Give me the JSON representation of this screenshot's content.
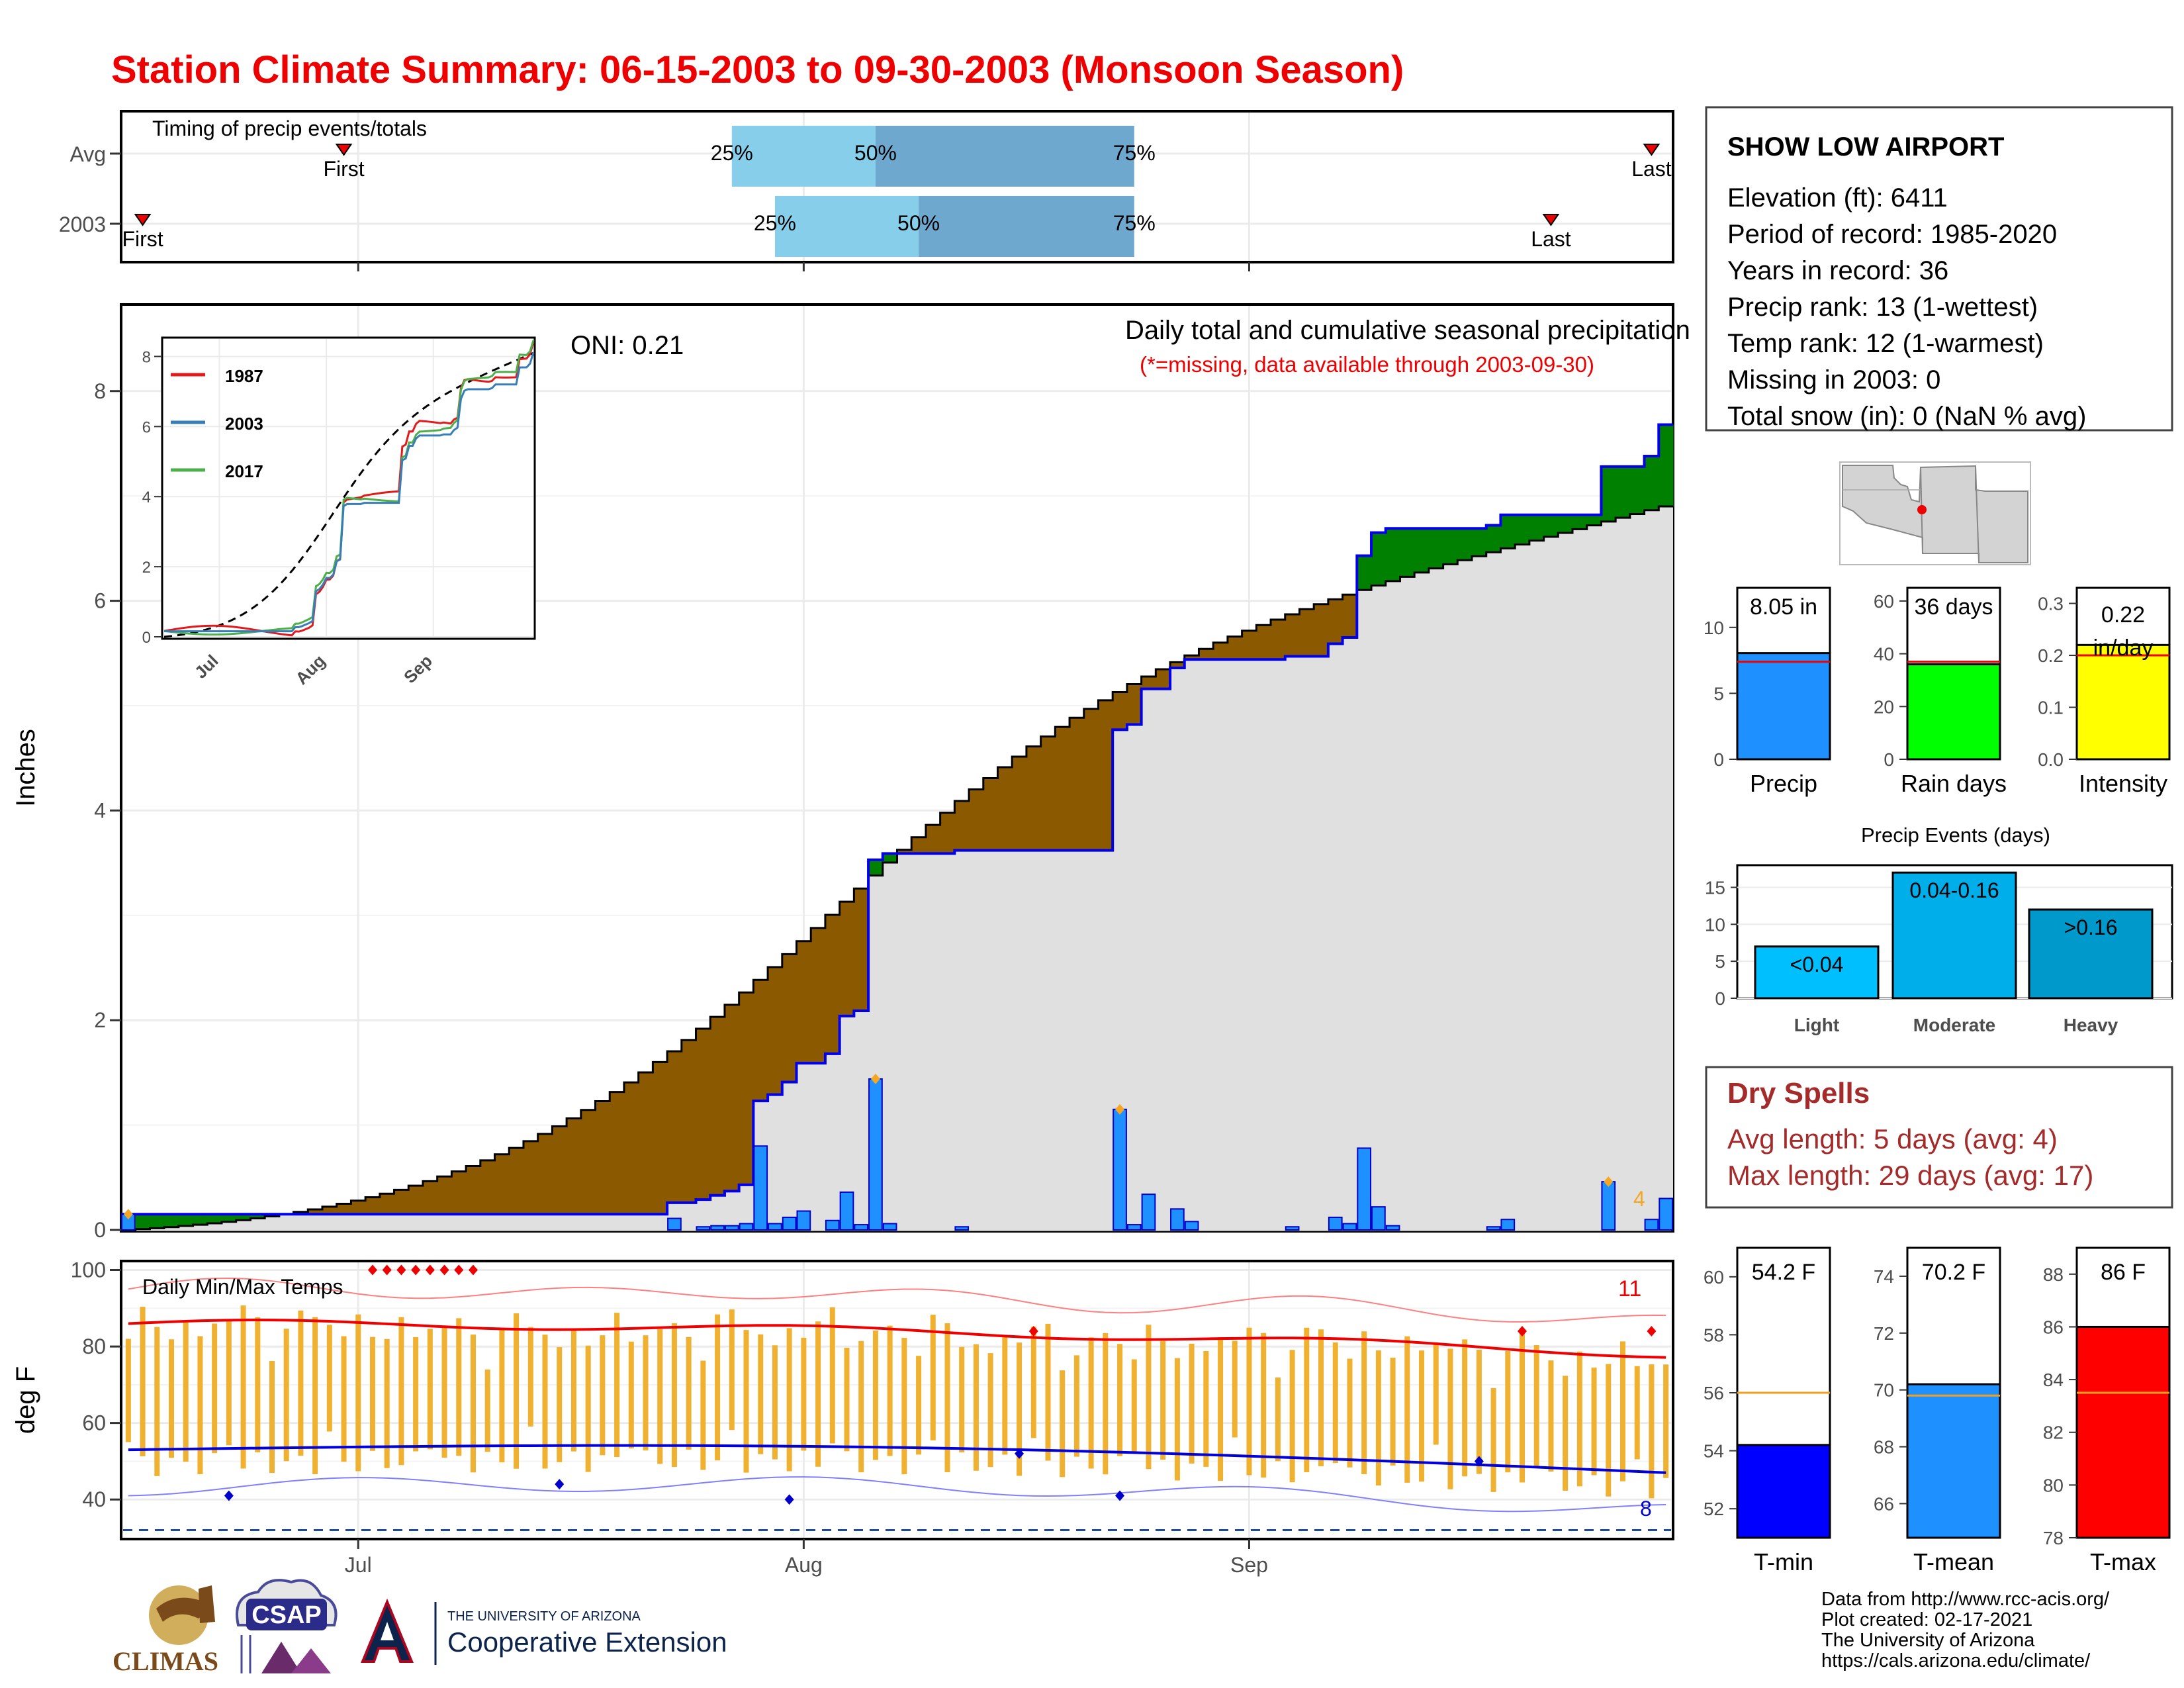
{
  "title": "Station Climate Summary: 06-15-2003 to 09-30-2003 (Monsoon Season)",
  "timing": {
    "label": "Timing of precip events/totals",
    "rows": [
      "Avg",
      "2003"
    ],
    "first_label": "First",
    "last_label": "Last",
    "pct_labels": [
      "25%",
      "50%",
      "75%"
    ]
  },
  "main": {
    "ylabel": "Inches",
    "title_line1": "Daily total and cumulative seasonal precipitation",
    "title_line2": "(*=missing, data available through 2003-09-30)",
    "oni": "ONI: 0.21",
    "corner_count": "4",
    "yticks": [
      "0",
      "2",
      "4",
      "6",
      "8"
    ],
    "months": [
      "Jul",
      "Aug",
      "Sep"
    ]
  },
  "inset": {
    "legend": [
      {
        "name": "1987",
        "color": "#e31a1c"
      },
      {
        "name": "2003",
        "color": "#377eb8"
      },
      {
        "name": "2017",
        "color": "#4daf4a"
      }
    ],
    "yticks": [
      "0",
      "2",
      "4",
      "6",
      "8"
    ],
    "months": [
      "Jul",
      "Aug",
      "Sep"
    ]
  },
  "temps": {
    "label": "Daily Min/Max Temps",
    "ylabel": "deg F",
    "yticks": [
      "40",
      "60",
      "80",
      "100"
    ],
    "count_hot": "11",
    "count_cold": "8"
  },
  "station": {
    "name": "SHOW LOW AIRPORT",
    "lines": [
      "Elevation (ft): 6411",
      "Period of record: 1985-2020",
      "Years in record: 36",
      "Precip rank: 13 (1-wettest)",
      "Temp rank: 12 (1-warmest)",
      "Missing in 2003: 0",
      "Total snow (in): 0 (NaN % avg)"
    ]
  },
  "summary_bars": [
    {
      "name": "Precip",
      "value_label": "8.05 in",
      "color": "#1e90ff",
      "yticks": [
        "0",
        "5",
        "10"
      ]
    },
    {
      "name": "Rain days",
      "value_label": "36 days",
      "color": "#00ff00",
      "yticks": [
        "0",
        "20",
        "40",
        "60"
      ]
    },
    {
      "name": "Intensity",
      "value_label_1": "0.22",
      "value_label_2": "in/day",
      "color": "#ffff00",
      "yticks": [
        "0.0",
        "0.1",
        "0.2",
        "0.3"
      ]
    }
  ],
  "events": {
    "title": "Precip Events (days)",
    "yticks": [
      "0",
      "5",
      "10",
      "15"
    ],
    "bars": [
      {
        "name": "Light",
        "label": "<0.04",
        "color": "#00bfff"
      },
      {
        "name": "Moderate",
        "label": "0.04-0.16",
        "color": "#00aeea"
      },
      {
        "name": "Heavy",
        "label": ">0.16",
        "color": "#0099cc"
      }
    ]
  },
  "dry_spells": {
    "title": "Dry Spells",
    "avg_line": "Avg length: 5 days (avg: 4)",
    "max_line": "Max length: 29 days (avg: 17)"
  },
  "temp_bars": [
    {
      "name": "T-min",
      "value_label": "54.2 F",
      "color": "#0000ff",
      "yticks": [
        "52",
        "54",
        "56",
        "58",
        "60"
      ]
    },
    {
      "name": "T-mean",
      "value_label": "70.2 F",
      "color": "#1e90ff",
      "yticks": [
        "66",
        "68",
        "70",
        "72",
        "74"
      ]
    },
    {
      "name": "T-max",
      "value_label": "86 F",
      "color": "#ff0000",
      "yticks": [
        "78",
        "80",
        "82",
        "84",
        "86",
        "88"
      ]
    }
  ],
  "credits": [
    "Data from http://www.rcc-acis.org/",
    "Plot created: 02-17-2021",
    "The University of Arizona",
    "https://cals.arizona.edu/climate/"
  ],
  "logos": {
    "climas": "CLIMAS",
    "csap": "CSAP",
    "ua_line1": "THE UNIVERSITY OF ARIZONA",
    "ua_line2": "Cooperative Extension"
  },
  "chart_data": {
    "type": "area",
    "daily_precip": [
      {
        "date": "2003-06-15",
        "in": 0.15
      },
      {
        "date": "2003-07-23",
        "in": 0.11
      },
      {
        "date": "2003-07-25",
        "in": 0.03
      },
      {
        "date": "2003-07-26",
        "in": 0.04
      },
      {
        "date": "2003-07-27",
        "in": 0.04
      },
      {
        "date": "2003-07-28",
        "in": 0.06
      },
      {
        "date": "2003-07-29",
        "in": 0.8
      },
      {
        "date": "2003-07-30",
        "in": 0.06
      },
      {
        "date": "2003-07-31",
        "in": 0.12
      },
      {
        "date": "2003-08-01",
        "in": 0.18
      },
      {
        "date": "2003-08-03",
        "in": 0.09
      },
      {
        "date": "2003-08-04",
        "in": 0.36
      },
      {
        "date": "2003-08-05",
        "in": 0.05
      },
      {
        "date": "2003-08-06",
        "in": 1.44
      },
      {
        "date": "2003-08-07",
        "in": 0.06
      },
      {
        "date": "2003-08-12",
        "in": 0.03
      },
      {
        "date": "2003-08-23",
        "in": 1.15
      },
      {
        "date": "2003-08-24",
        "in": 0.05
      },
      {
        "date": "2003-08-25",
        "in": 0.34
      },
      {
        "date": "2003-08-27",
        "in": 0.2
      },
      {
        "date": "2003-08-28",
        "in": 0.08
      },
      {
        "date": "2003-09-04",
        "in": 0.03
      },
      {
        "date": "2003-09-07",
        "in": 0.12
      },
      {
        "date": "2003-09-08",
        "in": 0.06
      },
      {
        "date": "2003-09-09",
        "in": 0.78
      },
      {
        "date": "2003-09-10",
        "in": 0.22
      },
      {
        "date": "2003-09-11",
        "in": 0.04
      },
      {
        "date": "2003-09-18",
        "in": 0.03
      },
      {
        "date": "2003-09-19",
        "in": 0.1
      },
      {
        "date": "2003-09-26",
        "in": 0.46
      },
      {
        "date": "2003-09-29",
        "in": 0.1
      },
      {
        "date": "2003-09-30",
        "in": 0.3
      }
    ],
    "season_total_in": 8.05,
    "avg_seasonal_end_in": 6.9,
    "timing_avg": {
      "first": "2003-06-30",
      "q25": "2003-07-27",
      "q50": "2003-08-06",
      "q75": "2003-08-24",
      "last": "2003-09-29"
    },
    "timing_2003": {
      "first": "2003-06-16",
      "q25": "2003-07-30",
      "q50": "2003-08-09",
      "q75": "2003-08-24",
      "last": "2003-09-22"
    },
    "inset_x_range": [
      "2003-06-15",
      "2003-09-30"
    ],
    "inset_ylim": [
      0,
      8.5
    ],
    "temps_ylim": [
      30,
      102
    ],
    "temp_avg_max_F": {
      "start": 86,
      "end": 78
    },
    "temp_avg_min_F": {
      "start": 53,
      "end": 47
    },
    "summary": {
      "precip": {
        "value": 8.05,
        "avg": 7.4,
        "ylim": [
          0,
          13
        ]
      },
      "rain_days": {
        "value": 36,
        "avg": 37,
        "ylim": [
          0,
          65
        ]
      },
      "intensity": {
        "value": 0.22,
        "avg": 0.2,
        "ylim": [
          0,
          0.33
        ]
      },
      "events": {
        "light": 7,
        "moderate": 17,
        "heavy": 12,
        "ylim": [
          0,
          18
        ]
      },
      "tmin": {
        "value": 54.2,
        "avg": 56,
        "ylim": [
          51,
          61
        ]
      },
      "tmean": {
        "value": 70.2,
        "avg": 69.8,
        "ylim": [
          64.8,
          75
        ]
      },
      "tmax": {
        "value": 86,
        "avg": 83.5,
        "ylim": [
          78,
          89
        ]
      }
    }
  }
}
